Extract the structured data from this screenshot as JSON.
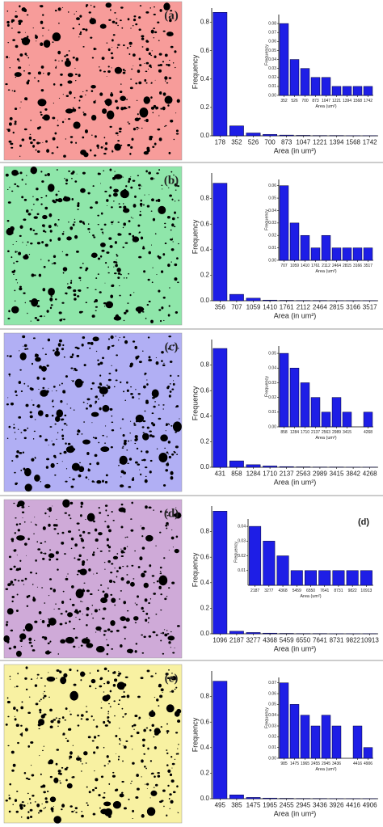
{
  "chart_data": [
    {
      "type": "bar",
      "annotation": "(a)",
      "ylabel": "Frequency",
      "xlabel": "Area (in um²)",
      "color": "#1e1ee6",
      "categories": [
        "178",
        "352",
        "526",
        "700",
        "873",
        "1047",
        "1221",
        "1394",
        "1568",
        "1742"
      ],
      "values": [
        0.87,
        0.07,
        0.02,
        0.01,
        0.005,
        0.003,
        0.002,
        0.002,
        0.001,
        0.001
      ],
      "ylim": [
        0,
        0.9
      ],
      "yticks": [
        {
          "value": 0,
          "label": "0.0"
        },
        0.2,
        0.4,
        0.6,
        0.8
      ]
    },
    {
      "type": "bar",
      "ylabel": "Frequency",
      "xlabel": "Area (um²)",
      "color": "#1e1ee6",
      "categories": [
        "352",
        "526",
        "700",
        "873",
        "1047",
        "1221",
        "1394",
        "1568",
        "1742"
      ],
      "values": [
        0.08,
        0.04,
        0.03,
        0.02,
        0.02,
        0.01,
        0.01,
        0.01,
        0.01
      ],
      "ylim": [
        0,
        0.09
      ],
      "yticks": [
        {
          "value": 0,
          "label": "0.00"
        },
        0.01,
        0.02,
        0.03,
        0.04,
        0.05,
        0.06,
        0.07,
        0.08
      ]
    },
    {
      "type": "bar",
      "annotation": "(b)",
      "ylabel": "Frequency",
      "xlabel": "Area (in um²)",
      "color": "#1e1ee6",
      "categories": [
        "356",
        "707",
        "1059",
        "1410",
        "1761",
        "2112",
        "2464",
        "2815",
        "3166",
        "3517"
      ],
      "values": [
        0.92,
        0.05,
        0.02,
        0.005,
        0.003,
        0.002,
        0.002,
        0.001,
        0.001,
        0.001
      ],
      "ylim": [
        0,
        1
      ],
      "yticks": [
        {
          "value": 0,
          "label": "0.0"
        },
        0.2,
        0.4,
        0.6,
        0.8
      ]
    },
    {
      "type": "bar",
      "ylabel": "Frequency",
      "xlabel": "Area (um²)",
      "color": "#1e1ee6",
      "categories": [
        "707",
        "1059",
        "1410",
        "1761",
        "2112",
        "2464",
        "2815",
        "3166",
        "3517"
      ],
      "values": [
        0.06,
        0.03,
        0.02,
        0.01,
        0.02,
        0.01,
        0.01,
        0.01,
        0.01
      ],
      "ylim": [
        0,
        0.065
      ],
      "yticks": [
        {
          "value": 0,
          "label": "0.00"
        },
        0.01,
        0.02,
        0.03,
        0.04,
        0.05,
        0.06
      ]
    },
    {
      "type": "bar",
      "annotation": "(c)",
      "ylabel": "Frequency",
      "xlabel": "Area (in um²)",
      "color": "#1e1ee6",
      "categories": [
        "431",
        "858",
        "1284",
        "1710",
        "2137",
        "2563",
        "2989",
        "3415",
        "3842",
        "4268"
      ],
      "values": [
        0.93,
        0.05,
        0.02,
        0.01,
        0.005,
        0.003,
        0.002,
        0.002,
        0.001,
        0.001
      ],
      "ylim": [
        0,
        1
      ],
      "yticks": [
        {
          "value": 0,
          "label": "0.0"
        },
        0.2,
        0.4,
        0.6,
        0.8
      ]
    },
    {
      "type": "bar",
      "ylabel": "Frequency",
      "xlabel": "Area (um²)",
      "color": "#1e1ee6",
      "categories": [
        "858",
        "1284",
        "1710",
        "2137",
        "2563",
        "2989",
        "3415",
        null,
        "4268"
      ],
      "values": [
        0.05,
        0.04,
        0.03,
        0.02,
        0.01,
        0.02,
        0.01,
        0,
        0.01
      ],
      "ylim": [
        0,
        0.055
      ],
      "yticks": [
        {
          "value": 0,
          "label": "0.00"
        },
        0.01,
        0.02,
        0.03,
        0.04,
        0.05
      ]
    },
    {
      "type": "bar",
      "annotation": "(d)",
      "ylabel": "Frequency",
      "xlabel": "Area (in um²)",
      "color": "#1e1ee6",
      "categories": [
        "1096",
        "2187",
        "3277",
        "4368",
        "5459",
        "6550",
        "7641",
        "8731",
        "9822",
        "10913"
      ],
      "values": [
        0.96,
        0.02,
        0.01,
        0.005,
        0.003,
        0.002,
        0.002,
        0.001,
        0.001,
        0.001
      ],
      "ylim": [
        0,
        1
      ],
      "yticks": [
        {
          "value": 0,
          "label": "0.0"
        },
        0.2,
        0.4,
        0.6,
        0.8
      ]
    },
    {
      "type": "bar",
      "annotation": "(d)",
      "ylabel": "Frequency",
      "xlabel": "Area (um²)",
      "color": "#1e1ee6",
      "categories": [
        "2187",
        "3277",
        "4368",
        "5459",
        "6550",
        "7641",
        "8731",
        "9822",
        "10913"
      ],
      "values": [
        0.04,
        0.03,
        0.02,
        0.01,
        0.01,
        0.01,
        0.01,
        0.01,
        0.01
      ],
      "ylim": [
        0,
        0.045
      ],
      "yticks": [
        0.01,
        0.02,
        0.03,
        0.04
      ]
    },
    {
      "type": "bar",
      "annotation": "(e)",
      "ylabel": "Frequency",
      "xlabel": "Area (in um²)",
      "color": "#1e1ee6",
      "categories": [
        "495",
        "385",
        "1475",
        "1965",
        "2455",
        "2945",
        "3436",
        "3926",
        "4416",
        "4906"
      ],
      "values": [
        0.92,
        0.03,
        0.01,
        0.005,
        0.003,
        0.002,
        0.002,
        0.001,
        0.001,
        0.001
      ],
      "ylim": [
        0,
        1
      ],
      "yticks": [
        {
          "value": 0,
          "label": "0.0"
        },
        0.2,
        0.4,
        0.6,
        0.8
      ]
    },
    {
      "type": "bar",
      "ylabel": "Frequency",
      "xlabel": "Area (um²)",
      "color": "#1e1ee6",
      "categories": [
        "985",
        "1475",
        "1965",
        "2455",
        "2945",
        "3436",
        null,
        "4416",
        "4906"
      ],
      "values": [
        0.07,
        0.05,
        0.04,
        0.03,
        0.04,
        0.03,
        0,
        0.03,
        0.01
      ],
      "ylim": [
        0,
        0.075
      ],
      "yticks": [
        {
          "value": 0,
          "label": "0.00"
        },
        0.01,
        0.02,
        0.03,
        0.04,
        0.05,
        0.06,
        0.07
      ]
    }
  ]
}
